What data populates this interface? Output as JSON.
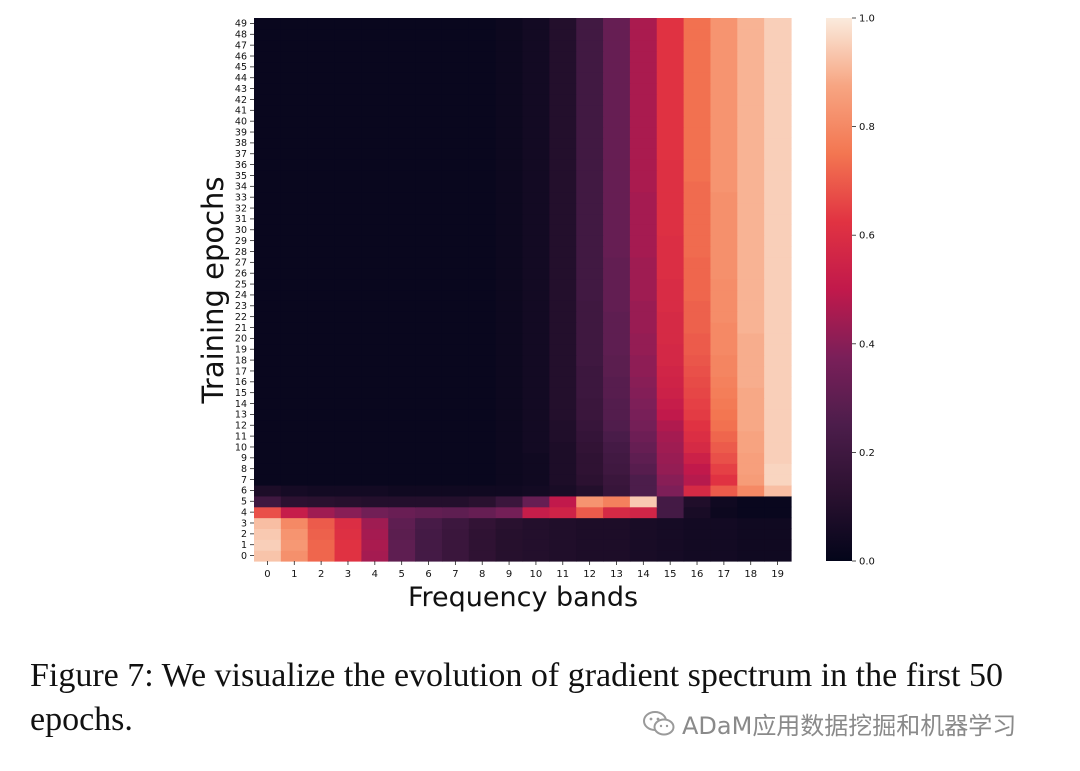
{
  "chart_data": {
    "type": "heatmap",
    "xlabel": "Frequency bands",
    "ylabel": "Training epochs",
    "x_categories": [
      "0",
      "1",
      "2",
      "3",
      "4",
      "5",
      "6",
      "7",
      "8",
      "9",
      "10",
      "11",
      "12",
      "13",
      "14",
      "15",
      "16",
      "17",
      "18",
      "19"
    ],
    "y_categories": [
      "0",
      "1",
      "2",
      "3",
      "4",
      "5",
      "6",
      "7",
      "8",
      "9",
      "10",
      "11",
      "12",
      "13",
      "14",
      "15",
      "16",
      "17",
      "18",
      "19",
      "20",
      "21",
      "22",
      "23",
      "24",
      "25",
      "26",
      "27",
      "28",
      "29",
      "30",
      "31",
      "32",
      "33",
      "34",
      "35",
      "36",
      "37",
      "38",
      "39",
      "40",
      "41",
      "42",
      "43",
      "44",
      "45",
      "46",
      "47",
      "48",
      "49"
    ],
    "colormap": "rocket",
    "colorbar": {
      "min": 0.0,
      "max": 1.0,
      "ticks": [
        "0.0",
        "0.2",
        "0.4",
        "0.6",
        "0.8",
        "1.0"
      ]
    },
    "rows_note": "values[i] = row for epoch i; columns = frequency bands 0..19",
    "values": [
      [
        0.93,
        0.82,
        0.72,
        0.62,
        0.45,
        0.3,
        0.22,
        0.18,
        0.14,
        0.11,
        0.1,
        0.09,
        0.08,
        0.08,
        0.07,
        0.06,
        0.05,
        0.05,
        0.04,
        0.04
      ],
      [
        0.95,
        0.84,
        0.72,
        0.62,
        0.46,
        0.3,
        0.22,
        0.18,
        0.14,
        0.11,
        0.1,
        0.09,
        0.08,
        0.08,
        0.07,
        0.06,
        0.05,
        0.05,
        0.04,
        0.04
      ],
      [
        0.94,
        0.83,
        0.71,
        0.61,
        0.45,
        0.29,
        0.22,
        0.18,
        0.14,
        0.11,
        0.1,
        0.09,
        0.08,
        0.08,
        0.07,
        0.06,
        0.05,
        0.05,
        0.04,
        0.04
      ],
      [
        0.92,
        0.8,
        0.7,
        0.6,
        0.44,
        0.3,
        0.23,
        0.19,
        0.15,
        0.12,
        0.1,
        0.09,
        0.08,
        0.08,
        0.07,
        0.06,
        0.05,
        0.05,
        0.04,
        0.04
      ],
      [
        0.68,
        0.52,
        0.44,
        0.4,
        0.35,
        0.33,
        0.31,
        0.3,
        0.32,
        0.36,
        0.52,
        0.55,
        0.7,
        0.58,
        0.56,
        0.22,
        0.07,
        0.03,
        0.02,
        0.02
      ],
      [
        0.2,
        0.13,
        0.12,
        0.11,
        0.1,
        0.1,
        0.1,
        0.1,
        0.12,
        0.18,
        0.32,
        0.5,
        0.83,
        0.78,
        0.94,
        0.22,
        0.09,
        0.04,
        0.02,
        0.02
      ],
      [
        0.08,
        0.06,
        0.05,
        0.05,
        0.05,
        0.04,
        0.04,
        0.04,
        0.04,
        0.04,
        0.05,
        0.07,
        0.1,
        0.17,
        0.25,
        0.38,
        0.58,
        0.7,
        0.8,
        0.92
      ],
      [
        0.02,
        0.02,
        0.02,
        0.02,
        0.02,
        0.02,
        0.02,
        0.02,
        0.02,
        0.03,
        0.04,
        0.08,
        0.13,
        0.18,
        0.25,
        0.4,
        0.48,
        0.62,
        0.85,
        0.96
      ],
      [
        0.02,
        0.02,
        0.02,
        0.02,
        0.02,
        0.02,
        0.02,
        0.02,
        0.02,
        0.03,
        0.04,
        0.08,
        0.14,
        0.2,
        0.28,
        0.42,
        0.5,
        0.65,
        0.86,
        0.96
      ],
      [
        0.02,
        0.02,
        0.02,
        0.02,
        0.02,
        0.02,
        0.02,
        0.02,
        0.02,
        0.03,
        0.04,
        0.08,
        0.14,
        0.21,
        0.3,
        0.43,
        0.54,
        0.68,
        0.86,
        0.95
      ],
      [
        0.02,
        0.02,
        0.02,
        0.02,
        0.02,
        0.02,
        0.02,
        0.02,
        0.02,
        0.03,
        0.05,
        0.08,
        0.15,
        0.22,
        0.32,
        0.44,
        0.58,
        0.7,
        0.87,
        0.95
      ],
      [
        0.02,
        0.02,
        0.02,
        0.02,
        0.02,
        0.02,
        0.02,
        0.02,
        0.02,
        0.03,
        0.05,
        0.09,
        0.16,
        0.24,
        0.34,
        0.45,
        0.6,
        0.72,
        0.87,
        0.95
      ],
      [
        0.02,
        0.02,
        0.02,
        0.02,
        0.02,
        0.02,
        0.02,
        0.02,
        0.02,
        0.03,
        0.05,
        0.09,
        0.17,
        0.26,
        0.36,
        0.47,
        0.62,
        0.74,
        0.88,
        0.95
      ],
      [
        0.02,
        0.02,
        0.02,
        0.02,
        0.02,
        0.02,
        0.02,
        0.02,
        0.02,
        0.03,
        0.05,
        0.1,
        0.18,
        0.27,
        0.37,
        0.5,
        0.64,
        0.75,
        0.88,
        0.95
      ],
      [
        0.02,
        0.02,
        0.02,
        0.02,
        0.02,
        0.02,
        0.02,
        0.02,
        0.02,
        0.03,
        0.05,
        0.1,
        0.18,
        0.27,
        0.38,
        0.52,
        0.65,
        0.76,
        0.88,
        0.95
      ],
      [
        0.02,
        0.02,
        0.02,
        0.02,
        0.02,
        0.02,
        0.02,
        0.02,
        0.02,
        0.03,
        0.05,
        0.1,
        0.19,
        0.28,
        0.39,
        0.54,
        0.66,
        0.77,
        0.88,
        0.95
      ],
      [
        0.02,
        0.02,
        0.02,
        0.02,
        0.02,
        0.02,
        0.02,
        0.02,
        0.02,
        0.03,
        0.05,
        0.1,
        0.19,
        0.28,
        0.4,
        0.55,
        0.67,
        0.78,
        0.89,
        0.95
      ],
      [
        0.02,
        0.02,
        0.02,
        0.02,
        0.02,
        0.02,
        0.02,
        0.02,
        0.02,
        0.03,
        0.05,
        0.1,
        0.19,
        0.29,
        0.41,
        0.56,
        0.68,
        0.79,
        0.89,
        0.95
      ],
      [
        0.02,
        0.02,
        0.02,
        0.02,
        0.02,
        0.02,
        0.02,
        0.02,
        0.02,
        0.03,
        0.05,
        0.1,
        0.2,
        0.29,
        0.41,
        0.57,
        0.69,
        0.79,
        0.89,
        0.95
      ],
      [
        0.02,
        0.02,
        0.02,
        0.02,
        0.02,
        0.02,
        0.02,
        0.02,
        0.02,
        0.03,
        0.05,
        0.1,
        0.2,
        0.3,
        0.42,
        0.57,
        0.7,
        0.8,
        0.89,
        0.95
      ],
      [
        0.02,
        0.02,
        0.02,
        0.02,
        0.02,
        0.02,
        0.02,
        0.02,
        0.02,
        0.03,
        0.05,
        0.1,
        0.2,
        0.3,
        0.42,
        0.58,
        0.7,
        0.8,
        0.89,
        0.95
      ],
      [
        0.02,
        0.02,
        0.02,
        0.02,
        0.02,
        0.02,
        0.02,
        0.02,
        0.02,
        0.03,
        0.05,
        0.1,
        0.2,
        0.3,
        0.43,
        0.58,
        0.71,
        0.8,
        0.9,
        0.95
      ],
      [
        0.02,
        0.02,
        0.02,
        0.02,
        0.02,
        0.02,
        0.02,
        0.02,
        0.02,
        0.03,
        0.05,
        0.1,
        0.2,
        0.3,
        0.43,
        0.58,
        0.71,
        0.81,
        0.9,
        0.95
      ],
      [
        0.02,
        0.02,
        0.02,
        0.02,
        0.02,
        0.02,
        0.02,
        0.02,
        0.02,
        0.03,
        0.05,
        0.1,
        0.2,
        0.31,
        0.43,
        0.59,
        0.71,
        0.81,
        0.9,
        0.95
      ],
      [
        0.02,
        0.02,
        0.02,
        0.02,
        0.02,
        0.02,
        0.02,
        0.02,
        0.02,
        0.03,
        0.05,
        0.1,
        0.21,
        0.31,
        0.44,
        0.59,
        0.72,
        0.81,
        0.9,
        0.95
      ],
      [
        0.02,
        0.02,
        0.02,
        0.02,
        0.02,
        0.02,
        0.02,
        0.02,
        0.02,
        0.03,
        0.05,
        0.1,
        0.21,
        0.31,
        0.44,
        0.59,
        0.72,
        0.81,
        0.9,
        0.95
      ],
      [
        0.02,
        0.02,
        0.02,
        0.02,
        0.02,
        0.02,
        0.02,
        0.02,
        0.02,
        0.03,
        0.05,
        0.1,
        0.21,
        0.31,
        0.44,
        0.6,
        0.72,
        0.82,
        0.9,
        0.95
      ],
      [
        0.02,
        0.02,
        0.02,
        0.02,
        0.02,
        0.02,
        0.02,
        0.02,
        0.02,
        0.03,
        0.05,
        0.1,
        0.21,
        0.31,
        0.44,
        0.6,
        0.72,
        0.82,
        0.9,
        0.95
      ],
      [
        0.02,
        0.02,
        0.02,
        0.02,
        0.02,
        0.02,
        0.02,
        0.02,
        0.02,
        0.03,
        0.05,
        0.1,
        0.21,
        0.32,
        0.45,
        0.6,
        0.73,
        0.82,
        0.9,
        0.95
      ],
      [
        0.02,
        0.02,
        0.02,
        0.02,
        0.02,
        0.02,
        0.02,
        0.02,
        0.02,
        0.03,
        0.05,
        0.1,
        0.21,
        0.32,
        0.45,
        0.6,
        0.73,
        0.82,
        0.9,
        0.95
      ],
      [
        0.02,
        0.02,
        0.02,
        0.02,
        0.02,
        0.02,
        0.02,
        0.02,
        0.02,
        0.03,
        0.05,
        0.1,
        0.21,
        0.32,
        0.45,
        0.61,
        0.73,
        0.82,
        0.9,
        0.95
      ],
      [
        0.02,
        0.02,
        0.02,
        0.02,
        0.02,
        0.02,
        0.02,
        0.02,
        0.02,
        0.03,
        0.05,
        0.1,
        0.21,
        0.32,
        0.45,
        0.61,
        0.73,
        0.82,
        0.9,
        0.95
      ],
      [
        0.02,
        0.02,
        0.02,
        0.02,
        0.02,
        0.02,
        0.02,
        0.02,
        0.02,
        0.03,
        0.05,
        0.1,
        0.21,
        0.32,
        0.45,
        0.61,
        0.73,
        0.82,
        0.9,
        0.95
      ],
      [
        0.02,
        0.02,
        0.02,
        0.02,
        0.02,
        0.02,
        0.02,
        0.02,
        0.02,
        0.03,
        0.05,
        0.1,
        0.21,
        0.32,
        0.45,
        0.61,
        0.73,
        0.82,
        0.9,
        0.95
      ],
      [
        0.02,
        0.02,
        0.02,
        0.02,
        0.02,
        0.02,
        0.02,
        0.02,
        0.02,
        0.03,
        0.05,
        0.1,
        0.21,
        0.32,
        0.46,
        0.61,
        0.73,
        0.83,
        0.9,
        0.95
      ],
      [
        0.02,
        0.02,
        0.02,
        0.02,
        0.02,
        0.02,
        0.02,
        0.02,
        0.02,
        0.03,
        0.05,
        0.1,
        0.21,
        0.32,
        0.46,
        0.61,
        0.74,
        0.83,
        0.9,
        0.95
      ],
      [
        0.02,
        0.02,
        0.02,
        0.02,
        0.02,
        0.02,
        0.02,
        0.02,
        0.02,
        0.03,
        0.05,
        0.1,
        0.21,
        0.32,
        0.46,
        0.61,
        0.74,
        0.83,
        0.9,
        0.95
      ],
      [
        0.02,
        0.02,
        0.02,
        0.02,
        0.02,
        0.02,
        0.02,
        0.02,
        0.02,
        0.03,
        0.05,
        0.1,
        0.21,
        0.32,
        0.46,
        0.62,
        0.74,
        0.83,
        0.9,
        0.95
      ],
      [
        0.02,
        0.02,
        0.02,
        0.02,
        0.02,
        0.02,
        0.02,
        0.02,
        0.02,
        0.03,
        0.05,
        0.1,
        0.21,
        0.32,
        0.46,
        0.62,
        0.74,
        0.83,
        0.9,
        0.95
      ],
      [
        0.02,
        0.02,
        0.02,
        0.02,
        0.02,
        0.02,
        0.02,
        0.02,
        0.02,
        0.03,
        0.05,
        0.1,
        0.21,
        0.32,
        0.46,
        0.62,
        0.74,
        0.83,
        0.9,
        0.95
      ],
      [
        0.02,
        0.02,
        0.02,
        0.02,
        0.02,
        0.02,
        0.02,
        0.02,
        0.02,
        0.03,
        0.05,
        0.1,
        0.21,
        0.32,
        0.46,
        0.62,
        0.74,
        0.83,
        0.9,
        0.95
      ],
      [
        0.02,
        0.02,
        0.02,
        0.02,
        0.02,
        0.02,
        0.02,
        0.02,
        0.02,
        0.03,
        0.05,
        0.1,
        0.21,
        0.32,
        0.46,
        0.62,
        0.74,
        0.83,
        0.9,
        0.95
      ],
      [
        0.02,
        0.02,
        0.02,
        0.02,
        0.02,
        0.02,
        0.02,
        0.02,
        0.02,
        0.03,
        0.05,
        0.1,
        0.21,
        0.32,
        0.46,
        0.62,
        0.74,
        0.83,
        0.9,
        0.95
      ],
      [
        0.02,
        0.02,
        0.02,
        0.02,
        0.02,
        0.02,
        0.02,
        0.02,
        0.02,
        0.03,
        0.05,
        0.1,
        0.21,
        0.32,
        0.46,
        0.62,
        0.74,
        0.83,
        0.9,
        0.95
      ],
      [
        0.02,
        0.02,
        0.02,
        0.02,
        0.02,
        0.02,
        0.02,
        0.02,
        0.02,
        0.03,
        0.05,
        0.1,
        0.21,
        0.32,
        0.46,
        0.62,
        0.74,
        0.83,
        0.9,
        0.95
      ],
      [
        0.02,
        0.02,
        0.02,
        0.02,
        0.02,
        0.02,
        0.02,
        0.02,
        0.02,
        0.03,
        0.05,
        0.1,
        0.21,
        0.32,
        0.46,
        0.62,
        0.74,
        0.83,
        0.9,
        0.95
      ],
      [
        0.02,
        0.02,
        0.02,
        0.02,
        0.02,
        0.02,
        0.02,
        0.02,
        0.02,
        0.03,
        0.05,
        0.1,
        0.21,
        0.32,
        0.46,
        0.62,
        0.74,
        0.83,
        0.9,
        0.95
      ],
      [
        0.02,
        0.02,
        0.02,
        0.02,
        0.02,
        0.02,
        0.02,
        0.02,
        0.02,
        0.03,
        0.05,
        0.1,
        0.21,
        0.32,
        0.46,
        0.62,
        0.74,
        0.83,
        0.9,
        0.95
      ],
      [
        0.02,
        0.02,
        0.02,
        0.02,
        0.02,
        0.02,
        0.02,
        0.02,
        0.02,
        0.03,
        0.05,
        0.1,
        0.21,
        0.32,
        0.46,
        0.62,
        0.74,
        0.83,
        0.9,
        0.95
      ],
      [
        0.02,
        0.02,
        0.02,
        0.02,
        0.02,
        0.02,
        0.02,
        0.02,
        0.02,
        0.03,
        0.05,
        0.1,
        0.21,
        0.32,
        0.46,
        0.62,
        0.74,
        0.83,
        0.9,
        0.95
      ]
    ]
  },
  "caption": "Figure 7: We visualize the evolution of gradient spectrum in the first 50 epochs.",
  "watermark": {
    "text": "ADaM应用数据挖掘和机器学习",
    "icon": "wechat-icon"
  }
}
